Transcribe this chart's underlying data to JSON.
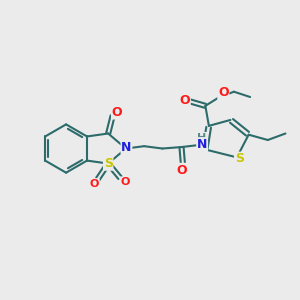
{
  "background_color": "#ebebeb",
  "bond_color": "#2d6b6b",
  "bond_width": 1.5,
  "atom_colors": {
    "O": "#ff1a1a",
    "N": "#2020e0",
    "S": "#c8c800",
    "H": "#5a8a8a",
    "C": "#2d6b6b"
  },
  "figsize": [
    3.0,
    3.0
  ],
  "dpi": 100,
  "xlim": [
    0,
    10
  ],
  "ylim": [
    0,
    10
  ]
}
